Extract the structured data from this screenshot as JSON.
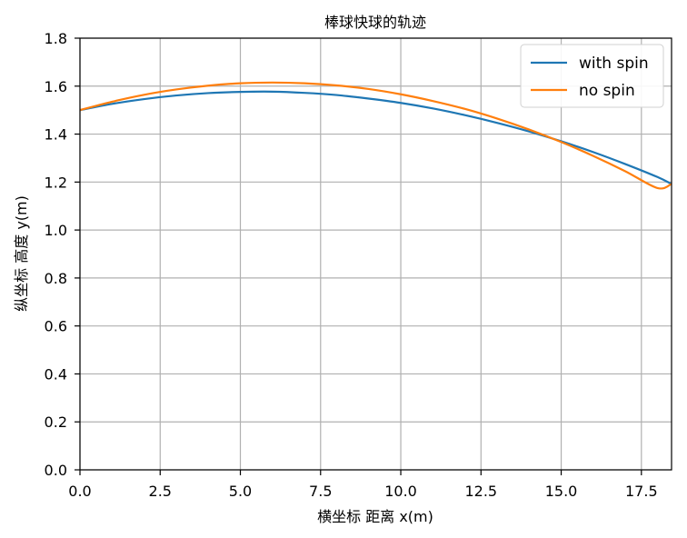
{
  "chart_data": {
    "type": "line",
    "title": "棒球快球的轨迹",
    "xlabel": "横坐标 距离 x(m)",
    "ylabel": "纵坐标 高度 y(m)",
    "xlim": [
      0,
      18.44
    ],
    "ylim": [
      0,
      1.8
    ],
    "xticks": [
      "0.0",
      "2.5",
      "5.0",
      "7.5",
      "10.0",
      "12.5",
      "15.0",
      "17.5"
    ],
    "yticks": [
      "0.0",
      "0.2",
      "0.4",
      "0.6",
      "0.8",
      "1.0",
      "1.2",
      "1.4",
      "1.6",
      "1.8"
    ],
    "grid": true,
    "legend_position": "top-right",
    "x": [
      0,
      1,
      2,
      3,
      4,
      5,
      6,
      7,
      8,
      9,
      10,
      11,
      12,
      13,
      14,
      15,
      16,
      17,
      18,
      18.44
    ],
    "series": [
      {
        "name": "with spin",
        "color": "#1f77b4",
        "values": [
          1.5,
          1.526,
          1.546,
          1.561,
          1.571,
          1.576,
          1.577,
          1.572,
          1.563,
          1.548,
          1.53,
          1.507,
          1.479,
          1.447,
          1.411,
          1.37,
          1.325,
          1.275,
          1.221,
          1.192
        ]
      },
      {
        "name": "no spin",
        "color": "#ff7f0e",
        "values": [
          1.5,
          1.535,
          1.564,
          1.586,
          1.602,
          1.612,
          1.615,
          1.612,
          1.603,
          1.588,
          1.566,
          1.538,
          1.505,
          1.465,
          1.419,
          1.367,
          1.309,
          1.245,
          1.175,
          1.192
        ]
      }
    ]
  }
}
